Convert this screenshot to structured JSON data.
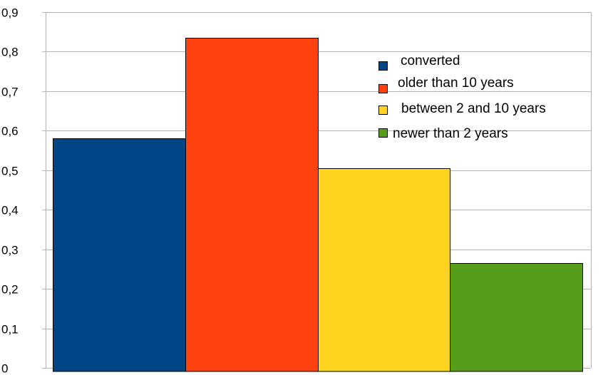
{
  "chart_data": {
    "type": "bar",
    "categories": [
      "converted",
      "older than 10 years",
      "between 2 and 10 years",
      "newer than 2 years"
    ],
    "values": [
      0.58,
      0.835,
      0.505,
      0.265
    ],
    "colors": [
      "#004586",
      "#ff420e",
      "#ffd320",
      "#579d1c"
    ],
    "ylim": [
      0,
      0.9
    ],
    "yticks": [
      0,
      0.1,
      0.2,
      0.3,
      0.4,
      0.5,
      0.6,
      0.7,
      0.8,
      0.9
    ],
    "ytick_labels": [
      "0",
      "0,1",
      "0,2",
      "0,3",
      "0,4",
      "0,5",
      "0,6",
      "0,7",
      "0,8",
      "0,9"
    ],
    "grid": true,
    "legend": {
      "placement": "top-right",
      "entries": [
        "converted",
        "older than 10 years",
        "between 2 and 10 years",
        "newer than 2 years"
      ]
    },
    "title": "",
    "xlabel": "",
    "ylabel": ""
  }
}
